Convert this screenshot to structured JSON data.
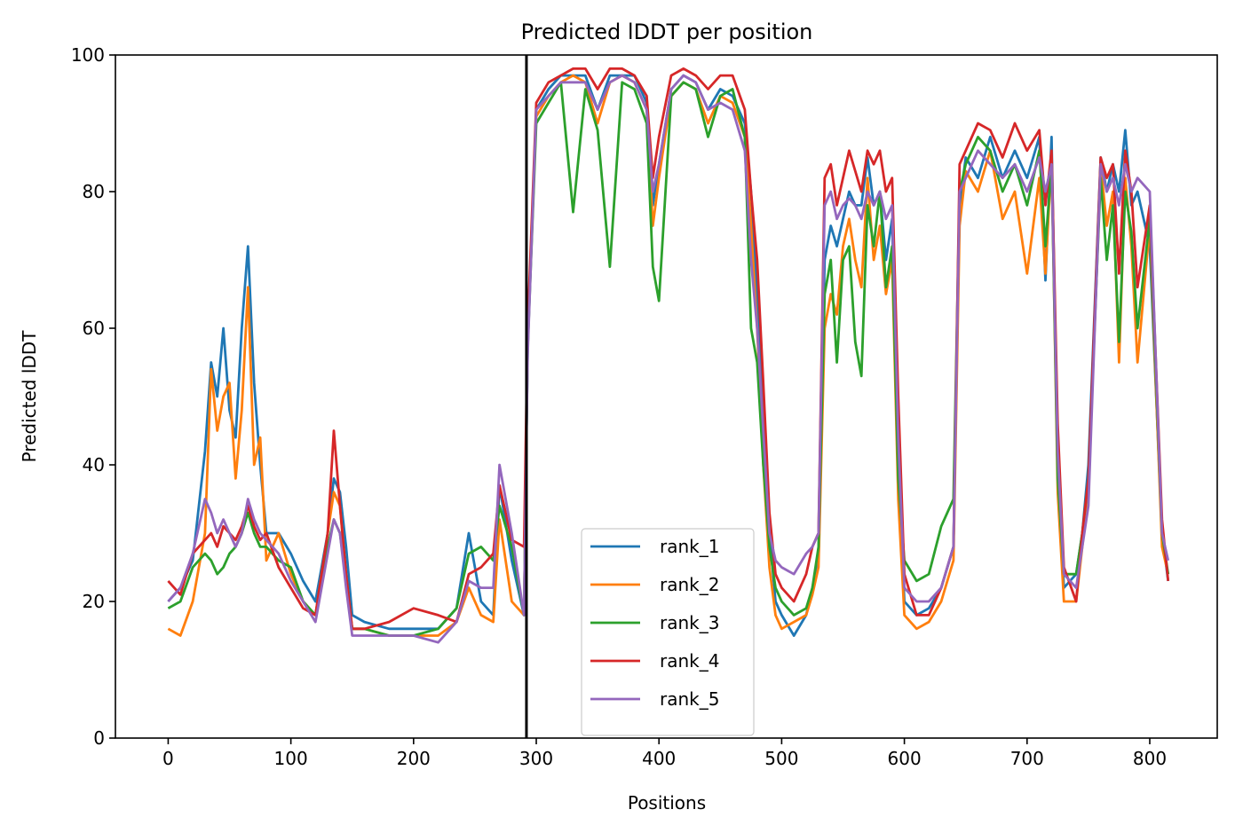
{
  "chart_data": {
    "type": "line",
    "title": "Predicted lDDT per position",
    "xlabel": "Positions",
    "ylabel": "Predicted lDDT",
    "xlim": [
      -43,
      855
    ],
    "ylim": [
      0,
      100
    ],
    "xticks": [
      0,
      100,
      200,
      300,
      400,
      500,
      600,
      700,
      800
    ],
    "yticks": [
      0,
      20,
      40,
      60,
      80,
      100
    ],
    "grid": false,
    "legend_position": "bottom-center",
    "vline_x": 292,
    "vline_color": "#000000",
    "x": [
      0,
      10,
      20,
      30,
      35,
      40,
      45,
      50,
      55,
      60,
      65,
      70,
      75,
      80,
      90,
      100,
      110,
      120,
      130,
      135,
      140,
      145,
      150,
      160,
      180,
      200,
      220,
      235,
      245,
      255,
      265,
      270,
      280,
      290,
      293,
      300,
      310,
      320,
      330,
      340,
      350,
      360,
      370,
      380,
      390,
      395,
      400,
      410,
      420,
      430,
      440,
      450,
      460,
      470,
      475,
      480,
      485,
      490,
      495,
      500,
      510,
      520,
      525,
      530,
      535,
      540,
      545,
      550,
      555,
      560,
      565,
      570,
      575,
      580,
      585,
      590,
      595,
      600,
      610,
      620,
      630,
      640,
      645,
      650,
      660,
      670,
      680,
      690,
      700,
      710,
      715,
      720,
      725,
      730,
      740,
      745,
      750,
      760,
      765,
      770,
      775,
      780,
      785,
      790,
      800,
      810,
      815
    ],
    "series": [
      {
        "name": "rank_1",
        "color": "#1f77b4",
        "values": [
          20,
          22,
          26,
          42,
          55,
          50,
          60,
          48,
          44,
          60,
          72,
          52,
          40,
          30,
          30,
          27,
          23,
          20,
          30,
          38,
          36,
          28,
          18,
          17,
          16,
          16,
          16,
          19,
          30,
          20,
          18,
          37,
          26,
          18,
          57,
          92,
          95,
          97,
          97,
          97,
          92,
          97,
          97,
          97,
          93,
          78,
          84,
          95,
          97,
          96,
          92,
          95,
          94,
          90,
          80,
          65,
          45,
          30,
          20,
          18,
          15,
          18,
          22,
          26,
          70,
          75,
          72,
          76,
          80,
          78,
          78,
          85,
          78,
          80,
          70,
          76,
          40,
          20,
          18,
          19,
          22,
          28,
          78,
          85,
          82,
          88,
          82,
          86,
          82,
          88,
          67,
          88,
          40,
          22,
          24,
          30,
          40,
          85,
          80,
          84,
          80,
          89,
          78,
          80,
          72,
          30,
          23
        ]
      },
      {
        "name": "rank_2",
        "color": "#ff7f0e",
        "values": [
          16,
          15,
          20,
          30,
          54,
          45,
          50,
          52,
          38,
          48,
          66,
          40,
          44,
          26,
          30,
          24,
          20,
          18,
          30,
          36,
          34,
          24,
          16,
          16,
          15,
          15,
          15,
          17,
          22,
          18,
          17,
          32,
          20,
          18,
          59,
          91,
          94,
          96,
          97,
          96,
          90,
          96,
          97,
          96,
          92,
          75,
          82,
          94,
          96,
          95,
          90,
          94,
          93,
          88,
          75,
          60,
          40,
          25,
          18,
          16,
          17,
          18,
          21,
          25,
          60,
          65,
          62,
          72,
          76,
          70,
          66,
          82,
          70,
          75,
          65,
          70,
          35,
          18,
          16,
          17,
          20,
          26,
          75,
          83,
          80,
          86,
          76,
          80,
          68,
          82,
          68,
          85,
          36,
          20,
          20,
          28,
          36,
          84,
          75,
          80,
          55,
          82,
          72,
          55,
          75,
          28,
          24
        ]
      },
      {
        "name": "rank_3",
        "color": "#2ca02c",
        "values": [
          19,
          20,
          25,
          27,
          26,
          24,
          25,
          27,
          28,
          30,
          33,
          30,
          28,
          28,
          26,
          25,
          20,
          18,
          28,
          32,
          30,
          23,
          16,
          16,
          15,
          15,
          16,
          19,
          27,
          28,
          26,
          34,
          28,
          18,
          57,
          90,
          93,
          96,
          77,
          95,
          89,
          69,
          96,
          95,
          90,
          69,
          64,
          94,
          96,
          95,
          88,
          94,
          95,
          88,
          60,
          55,
          40,
          28,
          22,
          20,
          18,
          19,
          22,
          28,
          65,
          70,
          55,
          70,
          72,
          58,
          53,
          78,
          72,
          80,
          66,
          72,
          38,
          26,
          23,
          24,
          31,
          35,
          80,
          84,
          88,
          86,
          80,
          84,
          78,
          86,
          72,
          84,
          38,
          24,
          24,
          30,
          38,
          82,
          70,
          78,
          58,
          80,
          74,
          60,
          76,
          30,
          24
        ]
      },
      {
        "name": "rank_4",
        "color": "#d62728",
        "values": [
          23,
          21,
          27,
          29,
          30,
          28,
          31,
          30,
          29,
          31,
          34,
          31,
          29,
          30,
          25,
          22,
          19,
          18,
          30,
          45,
          34,
          24,
          16,
          16,
          17,
          19,
          18,
          17,
          24,
          25,
          27,
          37,
          29,
          28,
          60,
          93,
          96,
          97,
          98,
          98,
          95,
          98,
          98,
          97,
          94,
          82,
          88,
          97,
          98,
          97,
          95,
          97,
          97,
          92,
          80,
          70,
          52,
          33,
          24,
          22,
          20,
          24,
          28,
          30,
          82,
          84,
          78,
          82,
          86,
          83,
          80,
          86,
          84,
          86,
          80,
          82,
          50,
          24,
          18,
          18,
          22,
          28,
          84,
          86,
          90,
          89,
          85,
          90,
          86,
          89,
          78,
          86,
          46,
          25,
          20,
          30,
          38,
          85,
          82,
          84,
          68,
          86,
          80,
          66,
          78,
          32,
          23
        ]
      },
      {
        "name": "rank_5",
        "color": "#9467bd",
        "values": [
          20,
          22,
          27,
          35,
          33,
          30,
          32,
          30,
          28,
          30,
          35,
          32,
          30,
          29,
          27,
          23,
          20,
          17,
          27,
          32,
          30,
          22,
          15,
          15,
          15,
          15,
          14,
          17,
          23,
          22,
          22,
          40,
          30,
          18,
          56,
          92,
          94,
          96,
          96,
          96,
          92,
          96,
          97,
          96,
          92,
          80,
          84,
          95,
          97,
          96,
          92,
          93,
          92,
          86,
          70,
          60,
          45,
          30,
          26,
          25,
          24,
          27,
          28,
          30,
          78,
          80,
          76,
          78,
          79,
          78,
          76,
          80,
          78,
          80,
          76,
          78,
          44,
          22,
          20,
          20,
          22,
          28,
          80,
          82,
          86,
          84,
          82,
          84,
          80,
          85,
          80,
          84,
          42,
          24,
          22,
          28,
          34,
          84,
          80,
          82,
          78,
          84,
          80,
          82,
          80,
          30,
          26
        ]
      }
    ]
  }
}
